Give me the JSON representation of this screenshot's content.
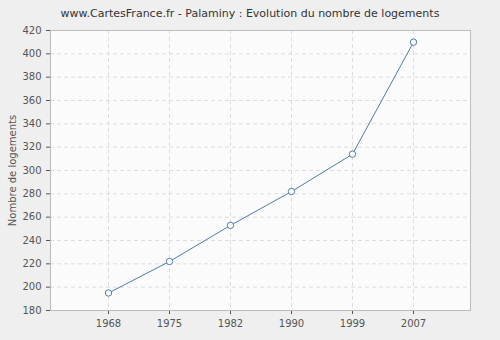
{
  "chart_data": {
    "type": "line",
    "title": "www.CartesFrance.fr - Palaminy : Evolution du nombre de logements",
    "y_label": "Nombre de logements",
    "categories": [
      "1968",
      "1975",
      "1982",
      "1990",
      "1999",
      "2007"
    ],
    "values": [
      195,
      222,
      253,
      282,
      314,
      410
    ],
    "color": "#4f7ab3",
    "marker": "circle",
    "ylim": [
      180,
      420
    ],
    "yticks": [
      180,
      200,
      220,
      240,
      260,
      280,
      300,
      320,
      340,
      360,
      380,
      400,
      420
    ],
    "grid": true
  }
}
